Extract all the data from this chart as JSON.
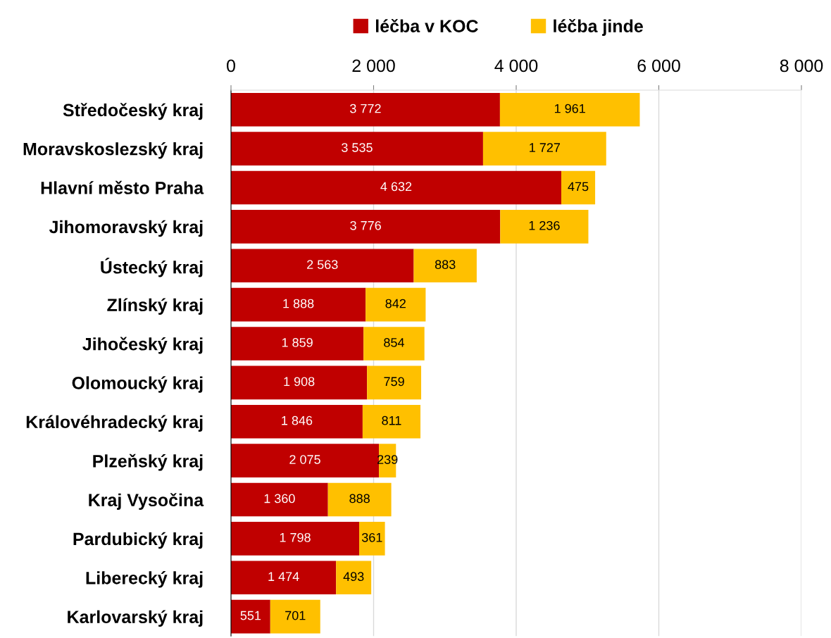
{
  "chart_data": {
    "type": "bar",
    "orientation": "horizontal",
    "stacked": true,
    "categories": [
      "Středočeský kraj",
      "Moravskoslezský kraj",
      "Hlavní město Praha",
      "Jihomoravský kraj",
      "Ústecký kraj",
      "Zlínský kraj",
      "Jihočeský kraj",
      "Olomoucký kraj",
      "Královéhradecký kraj",
      "Plzeňský kraj",
      "Kraj Vysočina",
      "Pardubický kraj",
      "Liberecký kraj",
      "Karlovarský kraj"
    ],
    "series": [
      {
        "name": "léčba v KOC",
        "color": "#c00000",
        "values": [
          3772,
          3535,
          4632,
          3776,
          2563,
          1888,
          1859,
          1908,
          1846,
          2075,
          1360,
          1798,
          1474,
          551
        ],
        "value_labels": [
          "3 772",
          "3 535",
          "4 632",
          "3 776",
          "2 563",
          "1 888",
          "1 859",
          "1 908",
          "1 846",
          "2 075",
          "1 360",
          "1 798",
          "1 474",
          "551"
        ]
      },
      {
        "name": "léčba jinde",
        "color": "#ffc000",
        "values": [
          1961,
          1727,
          475,
          1236,
          883,
          842,
          854,
          759,
          811,
          239,
          888,
          361,
          493,
          701
        ],
        "value_labels": [
          "1 961",
          "1 727",
          "475",
          "1 236",
          "883",
          "842",
          "854",
          "759",
          "811",
          "239",
          "888",
          "361",
          "493",
          "701"
        ]
      }
    ],
    "xlim": [
      0,
      8000
    ],
    "xticks": [
      0,
      {
        "value": 2000,
        "label": "2 000"
      },
      {
        "value": 4000,
        "label": "4 000"
      },
      {
        "value": 6000,
        "label": "6 000"
      },
      {
        "value": 8000,
        "label": "8 000"
      }
    ],
    "grid": "x",
    "legend": "top"
  }
}
